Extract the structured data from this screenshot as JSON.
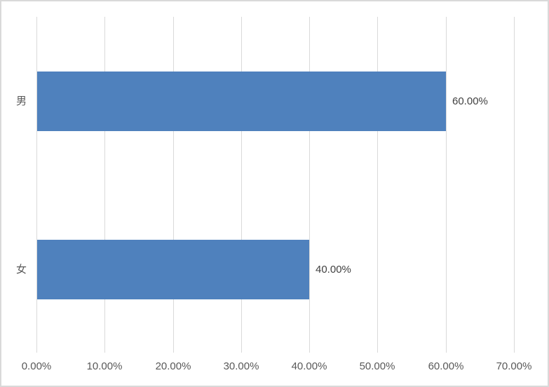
{
  "chart": {
    "background_color": "#FFFFFF",
    "border_color": "#D9D9D9",
    "gridline_color": "#D9D9D9",
    "axis_line_color": "#D9D9D9",
    "bar_color": "#4F81BD",
    "axis_label_color": "#595959",
    "data_label_color": "#404040"
  },
  "chart_data": {
    "type": "bar",
    "orientation": "horizontal",
    "title": "",
    "xlabel": "",
    "ylabel": "",
    "categories": [
      "男",
      "女"
    ],
    "values": [
      60,
      40
    ],
    "data_labels": [
      "60.00%",
      "40.00%"
    ],
    "x_tick_labels": [
      "0.00%",
      "10.00%",
      "20.00%",
      "30.00%",
      "40.00%",
      "50.00%",
      "60.00%",
      "70.00%"
    ],
    "x_tick_values": [
      0,
      10,
      20,
      30,
      40,
      50,
      60,
      70
    ],
    "xlim": [
      0,
      70
    ],
    "grid": "vertical-major",
    "legend": "none"
  }
}
